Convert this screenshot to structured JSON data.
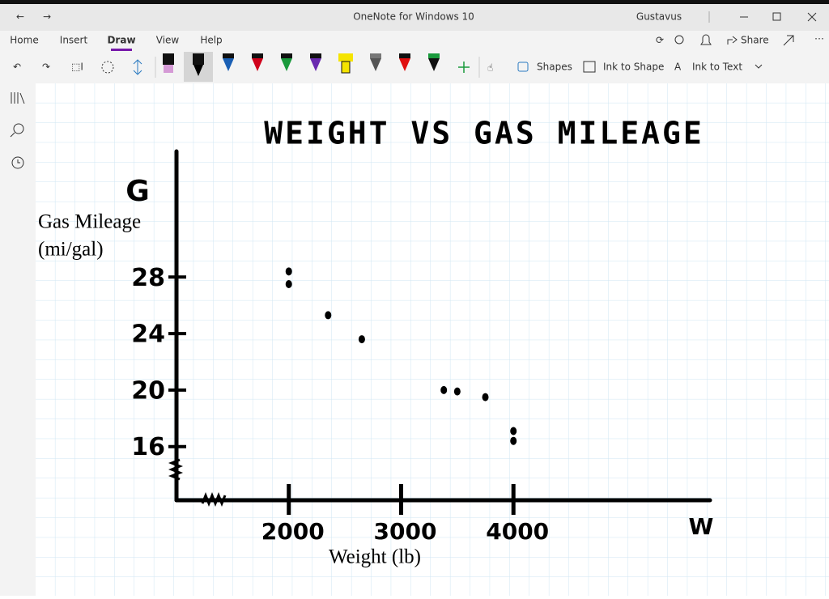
{
  "window": {
    "title": "OneNote for Windows 10",
    "user": "Gustavus"
  },
  "ribbon": {
    "tabs": [
      "Home",
      "Insert",
      "Draw",
      "View",
      "Help"
    ],
    "active_tab": "Draw",
    "share": "Share",
    "tools": [
      "Shapes",
      "Ink to Shape",
      "Ink to Text"
    ]
  },
  "chart_data": {
    "type": "scatter",
    "title": "WEIGHT VS GAS MILEAGE",
    "x_label": "Weight (lb)",
    "y_label": [
      "Gas Mileage",
      "(mi/gal)"
    ],
    "annotations": [
      "G",
      "W"
    ],
    "x": [
      2000,
      2000,
      2350,
      2650,
      3380,
      3500,
      3750,
      4000,
      4000
    ],
    "values": [
      28.4,
      27.5,
      25.3,
      23.6,
      20.0,
      19.9,
      19.5,
      17.1,
      16.4
    ],
    "color": "#000000",
    "xlim": [
      1000,
      5750
    ],
    "ylim": [
      12.2,
      36.9
    ],
    "xticks": [
      2000,
      3000,
      4000
    ],
    "yticks": [
      16,
      20,
      24,
      28
    ]
  }
}
